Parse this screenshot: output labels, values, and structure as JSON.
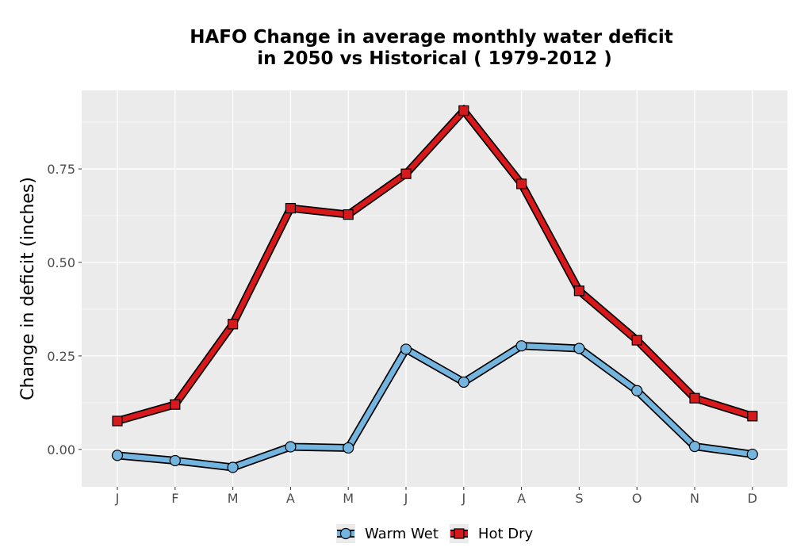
{
  "chart_data": {
    "type": "line",
    "title_line1": "HAFO  Change in average monthly water deficit",
    "title_line2": "in 2050 vs Historical ( 1979-2012 )",
    "xlabel": "",
    "ylabel": "Change in deficit (inches)",
    "categories": [
      "J",
      "F",
      "M",
      "A",
      "M",
      "J",
      "J",
      "A",
      "S",
      "O",
      "N",
      "D"
    ],
    "ylim": [
      -0.1,
      0.96
    ],
    "yticks": [
      0.0,
      0.25,
      0.5,
      0.75
    ],
    "ytick_labels": [
      "0.00",
      "0.25",
      "0.50",
      "0.75"
    ],
    "grid": true,
    "legend_position": "bottom",
    "series": [
      {
        "name": "Warm Wet",
        "marker": "circle",
        "color": "#74b5e0",
        "values": [
          -0.016,
          -0.03,
          -0.048,
          0.007,
          0.004,
          0.268,
          0.18,
          0.277,
          0.27,
          0.157,
          0.008,
          -0.013
        ]
      },
      {
        "name": "Hot Dry",
        "marker": "square",
        "color": "#d7191c",
        "values": [
          0.076,
          0.12,
          0.335,
          0.645,
          0.628,
          0.737,
          0.906,
          0.71,
          0.424,
          0.292,
          0.137,
          0.089
        ]
      }
    ]
  }
}
